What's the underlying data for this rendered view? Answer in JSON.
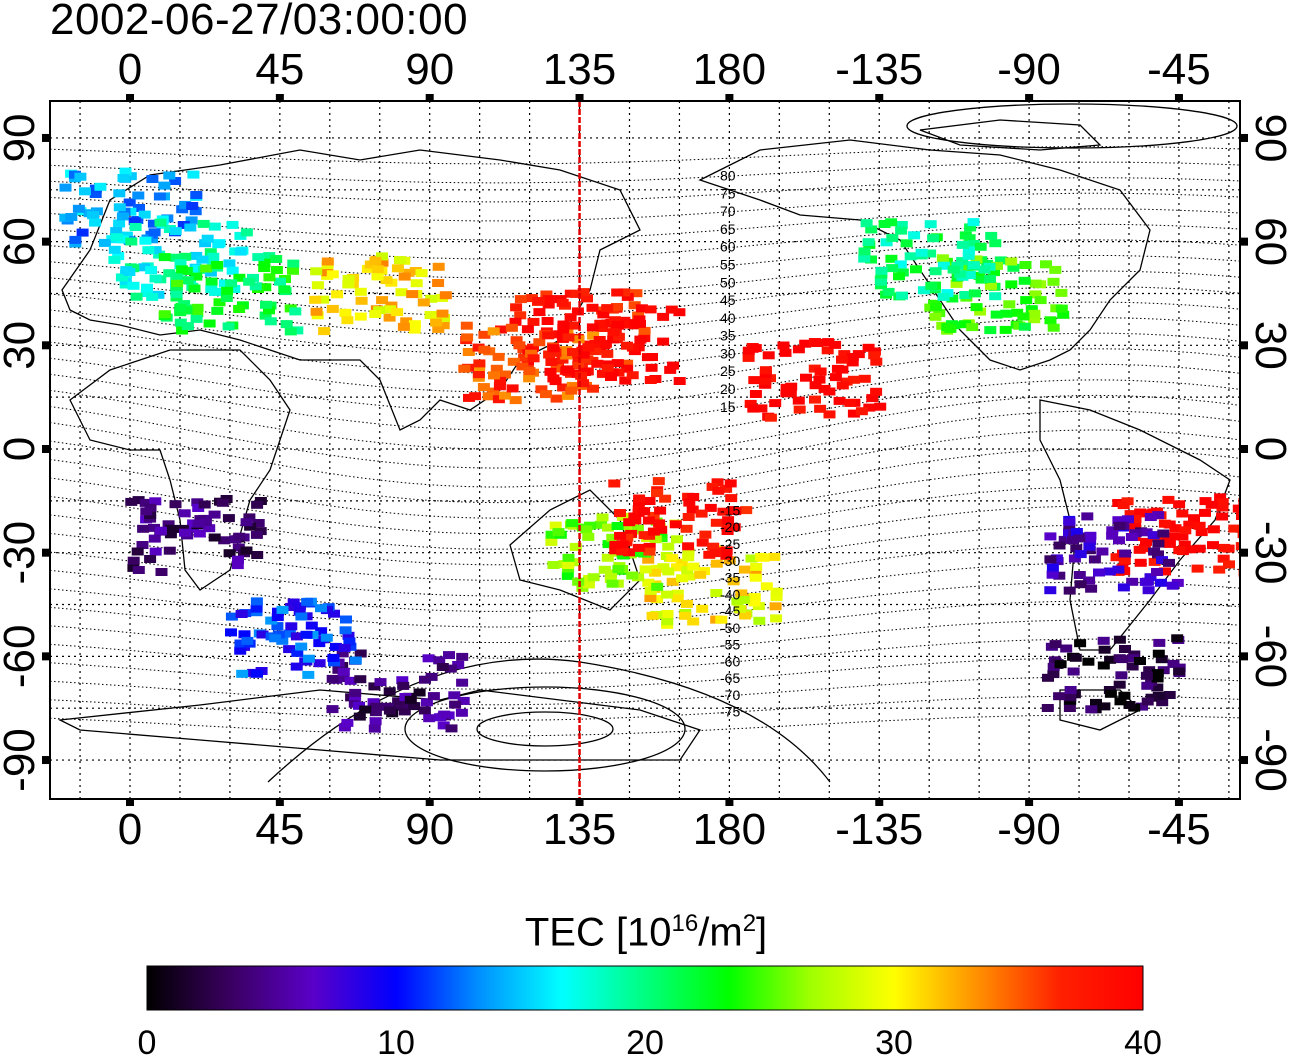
{
  "title": "2002-06-27/03:00:00",
  "axes": {
    "lon_ticks": [
      "0",
      "45",
      "90",
      "135",
      "180",
      "-135",
      "-90",
      "-45"
    ],
    "lat_ticks": [
      "90",
      "60",
      "30",
      "0",
      "-30",
      "-60",
      "-90"
    ]
  },
  "red_meridian_lon": 135,
  "contour_labels": [
    "80",
    "75",
    "70",
    "65",
    "60",
    "55",
    "50",
    "45",
    "40",
    "35",
    "30",
    "25",
    "20",
    "15",
    "-15",
    "-20",
    "-25",
    "-30",
    "-35",
    "-40",
    "-45",
    "-50",
    "-55",
    "-60",
    "-65",
    "-70",
    "-75"
  ],
  "colorbar": {
    "label_prefix": "TEC  [10",
    "label_exp1": "16",
    "label_mid": "/m",
    "label_exp2": "2",
    "label_suffix": "]",
    "ticks": [
      "0",
      "10",
      "20",
      "30",
      "40"
    ],
    "colors": [
      "#000000",
      "#3a0060",
      "#5a00c8",
      "#0000ff",
      "#0090ff",
      "#00ffff",
      "#00ff80",
      "#00ff00",
      "#a0ff00",
      "#ffff00",
      "#ff9000",
      "#ff2000",
      "#ff0000"
    ]
  },
  "tec_regions": [
    {
      "lon": 0,
      "lat": 70,
      "tec": 14
    },
    {
      "lon": 15,
      "lat": 55,
      "tec": 18
    },
    {
      "lon": 30,
      "lat": 45,
      "tec": 22
    },
    {
      "lon": 75,
      "lat": 45,
      "tec": 31
    },
    {
      "lon": 135,
      "lat": 35,
      "tec": 38
    },
    {
      "lon": 120,
      "lat": 25,
      "tec": 36
    },
    {
      "lon": 145,
      "lat": 30,
      "tec": 40
    },
    {
      "lon": -100,
      "lat": 45,
      "tec": 24
    },
    {
      "lon": -120,
      "lat": 55,
      "tec": 20
    },
    {
      "lon": -155,
      "lat": 20,
      "tec": 40
    },
    {
      "lon": 20,
      "lat": -25,
      "tec": 4
    },
    {
      "lon": 175,
      "lat": -40,
      "tec": 30
    },
    {
      "lon": 145,
      "lat": -30,
      "tec": 26
    },
    {
      "lon": -45,
      "lat": -25,
      "tec": 40
    },
    {
      "lon": -65,
      "lat": -30,
      "tec": 6
    },
    {
      "lon": -65,
      "lat": -65,
      "tec": 2
    },
    {
      "lon": 80,
      "lat": -70,
      "tec": 4
    },
    {
      "lon": 165,
      "lat": -20,
      "tec": 39
    },
    {
      "lon": 50,
      "lat": -55,
      "tec": 11
    }
  ]
}
